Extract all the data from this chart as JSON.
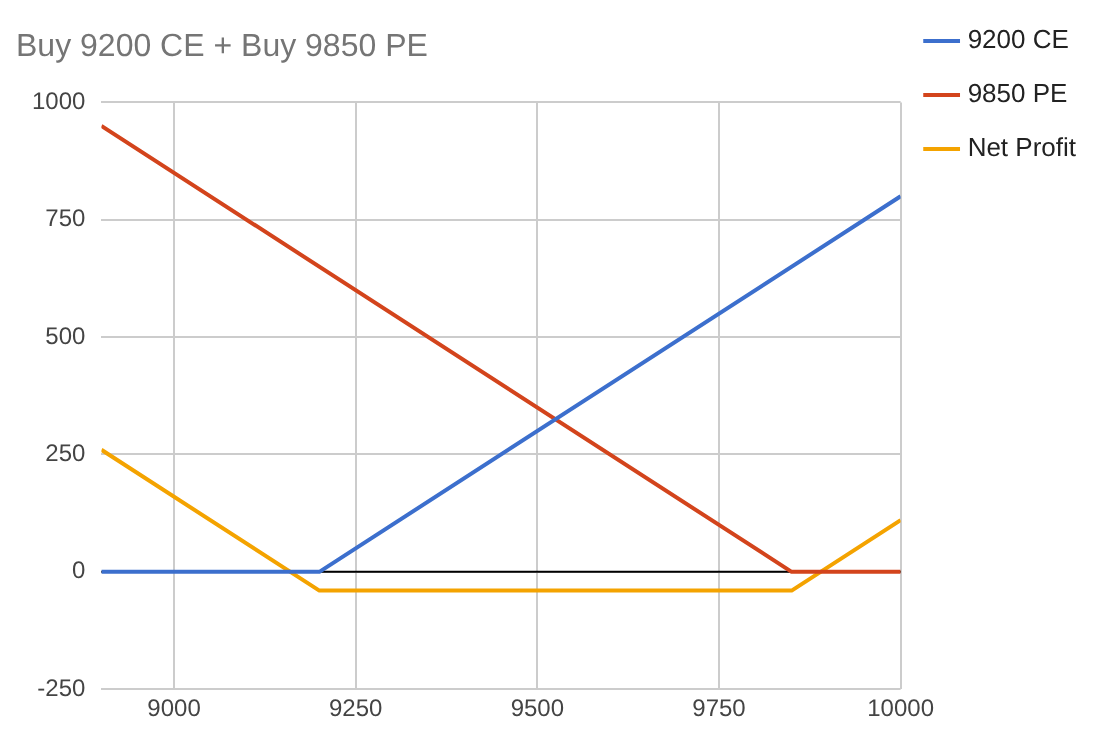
{
  "chart_data": {
    "type": "line",
    "title": "Buy 9200 CE + Buy 9850 PE",
    "series": [
      {
        "name": "9200 CE",
        "color": "#3c6fcd",
        "x": [
          8900,
          9200,
          10000
        ],
        "values": [
          0,
          0,
          800
        ]
      },
      {
        "name": "9850 PE",
        "color": "#d3441c",
        "x": [
          8900,
          9850,
          10000
        ],
        "values": [
          950,
          0,
          0
        ]
      },
      {
        "name": "Net Profit",
        "color": "#f4a300",
        "x": [
          8900,
          9200,
          9850,
          10000
        ],
        "values": [
          260,
          -40,
          -40,
          110
        ]
      }
    ],
    "xlim": [
      8900,
      10000
    ],
    "xticks": [
      9000,
      9250,
      9500,
      9750,
      10000
    ],
    "ylim": [
      -250,
      1000
    ],
    "yticks": [
      -250,
      0,
      250,
      500,
      750,
      1000
    ],
    "ref_lines": [
      {
        "axis": "y",
        "value": 0,
        "color": "#000000"
      }
    ],
    "grid": true,
    "legend": "right",
    "marker": "none",
    "line_style": "solid"
  }
}
